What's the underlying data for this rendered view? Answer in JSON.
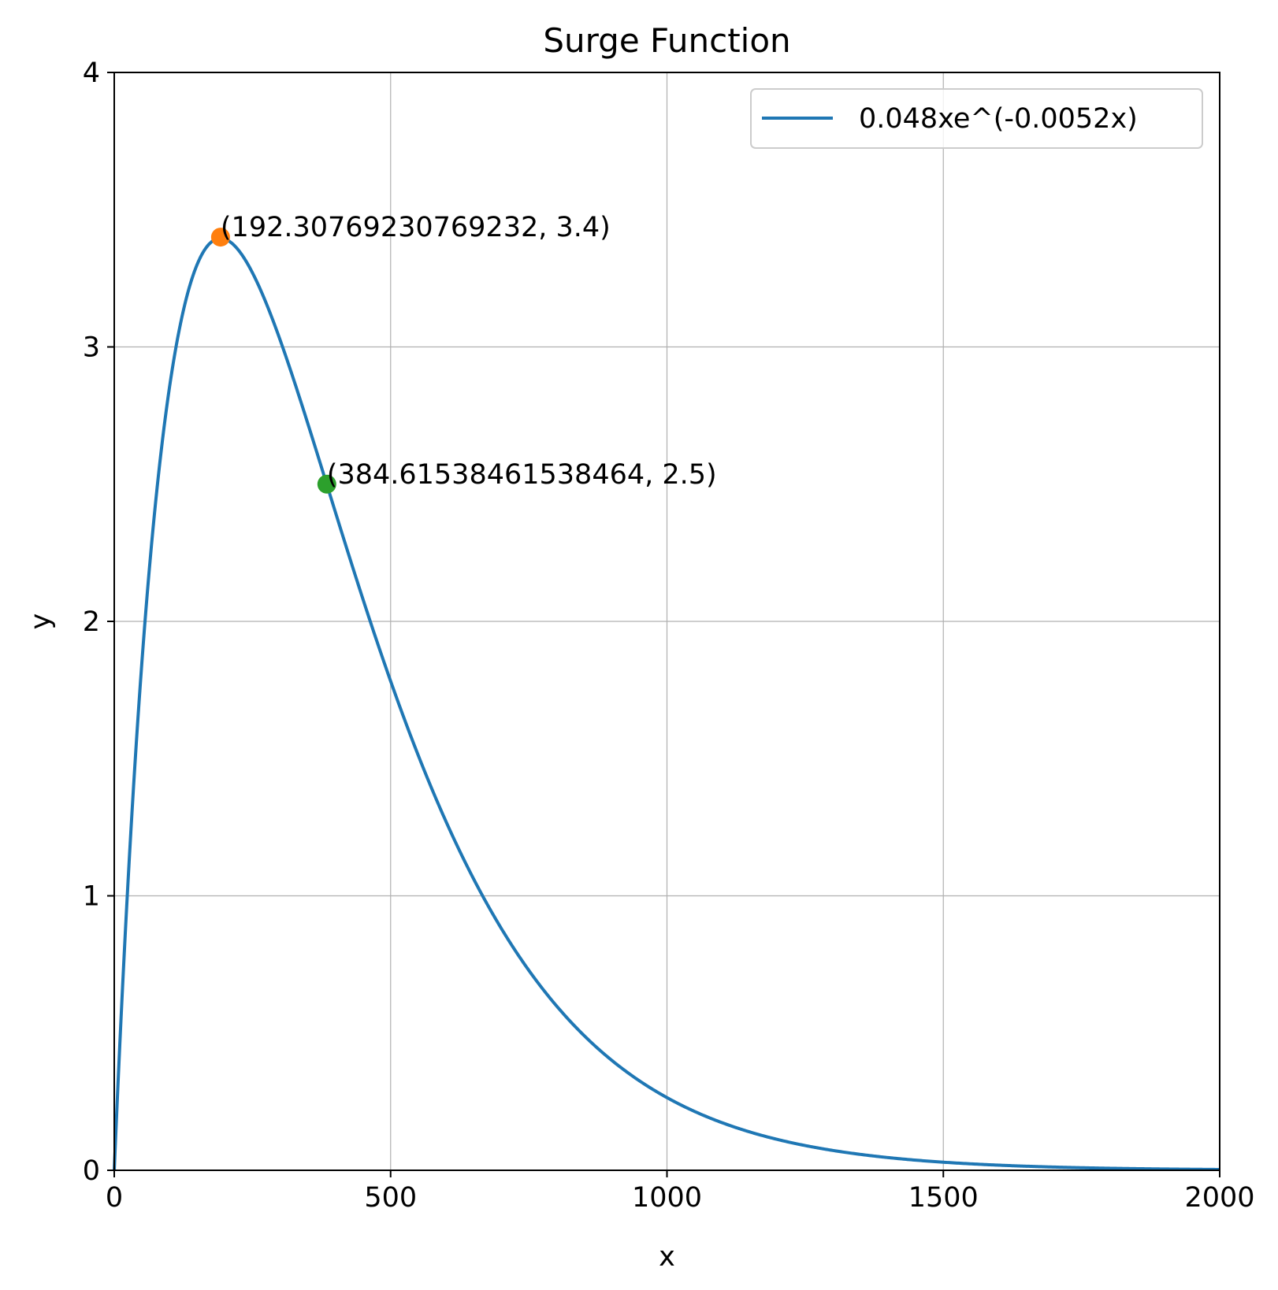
{
  "chart_data": {
    "type": "line",
    "title": "Surge Function",
    "xlabel": "x",
    "ylabel": "y",
    "xlim": [
      0,
      2000
    ],
    "ylim": [
      0,
      4
    ],
    "grid": true,
    "legend_position": "top-right",
    "xticks": [
      0,
      500,
      1000,
      1500,
      2000
    ],
    "xtick_labels": [
      "0",
      "500",
      "1000",
      "1500",
      "2000"
    ],
    "yticks": [
      0,
      1,
      2,
      3,
      4
    ],
    "ytick_labels": [
      "0",
      "1",
      "2",
      "3",
      "4"
    ],
    "series": [
      {
        "name": "0.048xe^(-0.0052x)",
        "color": "#1f77b4",
        "function": {
          "a": 0.048,
          "b": 0.0052
        },
        "x_range": [
          0,
          2000
        ],
        "samples": 800
      }
    ],
    "points": [
      {
        "x": 192.30769230769232,
        "y": 3.4,
        "color": "#ff7f0e",
        "label": "(192.30769230769232, 3.4)"
      },
      {
        "x": 384.61538461538464,
        "y": 2.5,
        "color": "#2ca02c",
        "label": "(384.61538461538464, 2.5)"
      }
    ]
  }
}
